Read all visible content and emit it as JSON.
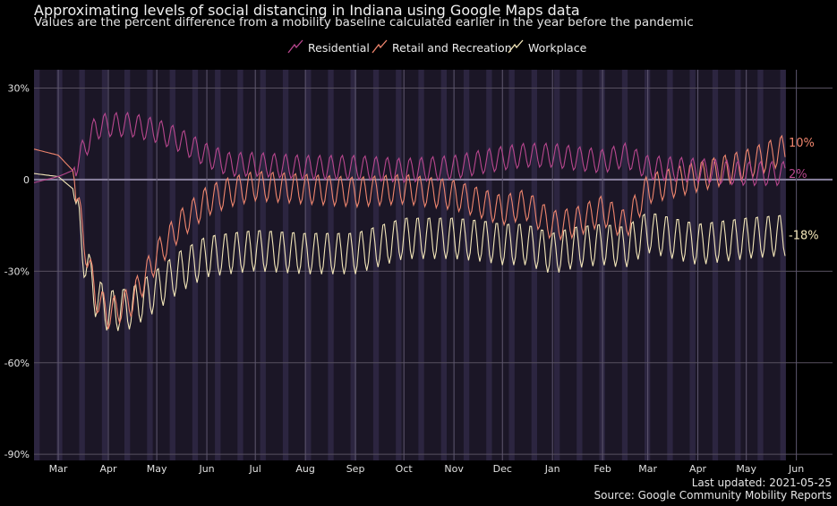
{
  "chart_data": {
    "type": "line",
    "title": "Approximating levels of social distancing in Indiana using Google Maps data",
    "subtitle": "Values are the percent difference from a mobility baseline calculated earlier in the year before the pandemic",
    "x_range": [
      "2020-02-15",
      "2021-05-25"
    ],
    "x_ticks": [
      "Mar",
      "Apr",
      "May",
      "Jun",
      "Jul",
      "Aug",
      "Sep",
      "Oct",
      "Nov",
      "Dec",
      "Jan",
      "Feb",
      "Mar",
      "Apr",
      "May",
      "Jun"
    ],
    "y_ticks": [
      "30%",
      "0",
      "-30%",
      "-60%",
      "-90%"
    ],
    "ylim": [
      -92,
      36
    ],
    "grid": true,
    "legend_position": "top",
    "series": [
      {
        "name": "Residential",
        "color": "#b8478e",
        "end_label": "2%",
        "points": [
          [
            "2020-02-15",
            -1
          ],
          [
            "2020-03-01",
            1
          ],
          [
            "2020-03-10",
            3
          ],
          [
            "2020-03-17",
            10
          ],
          [
            "2020-03-24",
            17
          ],
          [
            "2020-04-01",
            18
          ],
          [
            "2020-04-15",
            18
          ],
          [
            "2020-05-01",
            16
          ],
          [
            "2020-05-15",
            13
          ],
          [
            "2020-06-01",
            8
          ],
          [
            "2020-06-15",
            5
          ],
          [
            "2020-07-01",
            5
          ],
          [
            "2020-08-01",
            4
          ],
          [
            "2020-09-01",
            4
          ],
          [
            "2020-10-01",
            3
          ],
          [
            "2020-11-01",
            4
          ],
          [
            "2020-11-20",
            6
          ],
          [
            "2020-12-01",
            7
          ],
          [
            "2020-12-15",
            8
          ],
          [
            "2021-01-01",
            8
          ],
          [
            "2021-01-15",
            7
          ],
          [
            "2021-02-01",
            6
          ],
          [
            "2021-02-15",
            8
          ],
          [
            "2021-03-01",
            4
          ],
          [
            "2021-04-01",
            3
          ],
          [
            "2021-05-01",
            2
          ],
          [
            "2021-05-25",
            2
          ]
        ]
      },
      {
        "name": "Retail and Recreation",
        "color": "#f0866e",
        "end_label": "10%",
        "points": [
          [
            "2020-02-15",
            10
          ],
          [
            "2020-03-01",
            8
          ],
          [
            "2020-03-10",
            3
          ],
          [
            "2020-03-17",
            -20
          ],
          [
            "2020-03-24",
            -38
          ],
          [
            "2020-04-01",
            -44
          ],
          [
            "2020-04-15",
            -40
          ],
          [
            "2020-05-01",
            -25
          ],
          [
            "2020-05-15",
            -15
          ],
          [
            "2020-06-01",
            -7
          ],
          [
            "2020-06-15",
            -4
          ],
          [
            "2020-07-01",
            -2
          ],
          [
            "2020-08-01",
            -3
          ],
          [
            "2020-09-01",
            -4
          ],
          [
            "2020-10-01",
            -3
          ],
          [
            "2020-11-01",
            -5
          ],
          [
            "2020-11-20",
            -8
          ],
          [
            "2020-12-01",
            -10
          ],
          [
            "2020-12-15",
            -8
          ],
          [
            "2021-01-01",
            -15
          ],
          [
            "2021-01-15",
            -14
          ],
          [
            "2021-02-01",
            -10
          ],
          [
            "2021-02-15",
            -15
          ],
          [
            "2021-03-01",
            -3
          ],
          [
            "2021-04-01",
            1
          ],
          [
            "2021-05-01",
            5
          ],
          [
            "2021-05-25",
            10
          ]
        ]
      },
      {
        "name": "Workplace",
        "color": "#f3e6b8",
        "end_label": "-18%",
        "points": [
          [
            "2020-02-15",
            2
          ],
          [
            "2020-03-01",
            1
          ],
          [
            "2020-03-10",
            -3
          ],
          [
            "2020-03-17",
            -25
          ],
          [
            "2020-03-24",
            -38
          ],
          [
            "2020-04-01",
            -43
          ],
          [
            "2020-04-15",
            -42
          ],
          [
            "2020-05-01",
            -36
          ],
          [
            "2020-05-15",
            -30
          ],
          [
            "2020-06-01",
            -25
          ],
          [
            "2020-06-15",
            -24
          ],
          [
            "2020-07-01",
            -23
          ],
          [
            "2020-08-01",
            -24
          ],
          [
            "2020-09-01",
            -24
          ],
          [
            "2020-10-01",
            -19
          ],
          [
            "2020-11-01",
            -19
          ],
          [
            "2020-11-20",
            -20
          ],
          [
            "2020-12-01",
            -21
          ],
          [
            "2020-12-15",
            -21
          ],
          [
            "2021-01-01",
            -24
          ],
          [
            "2021-01-15",
            -22
          ],
          [
            "2021-02-01",
            -21
          ],
          [
            "2021-02-15",
            -22
          ],
          [
            "2021-03-01",
            -17
          ],
          [
            "2021-04-01",
            -21
          ],
          [
            "2021-05-01",
            -19
          ],
          [
            "2021-05-25",
            -18
          ]
        ]
      }
    ]
  },
  "footer": {
    "updated": "Last updated: 2021-05-25",
    "source": "Source: Google Community Mobility Reports"
  }
}
